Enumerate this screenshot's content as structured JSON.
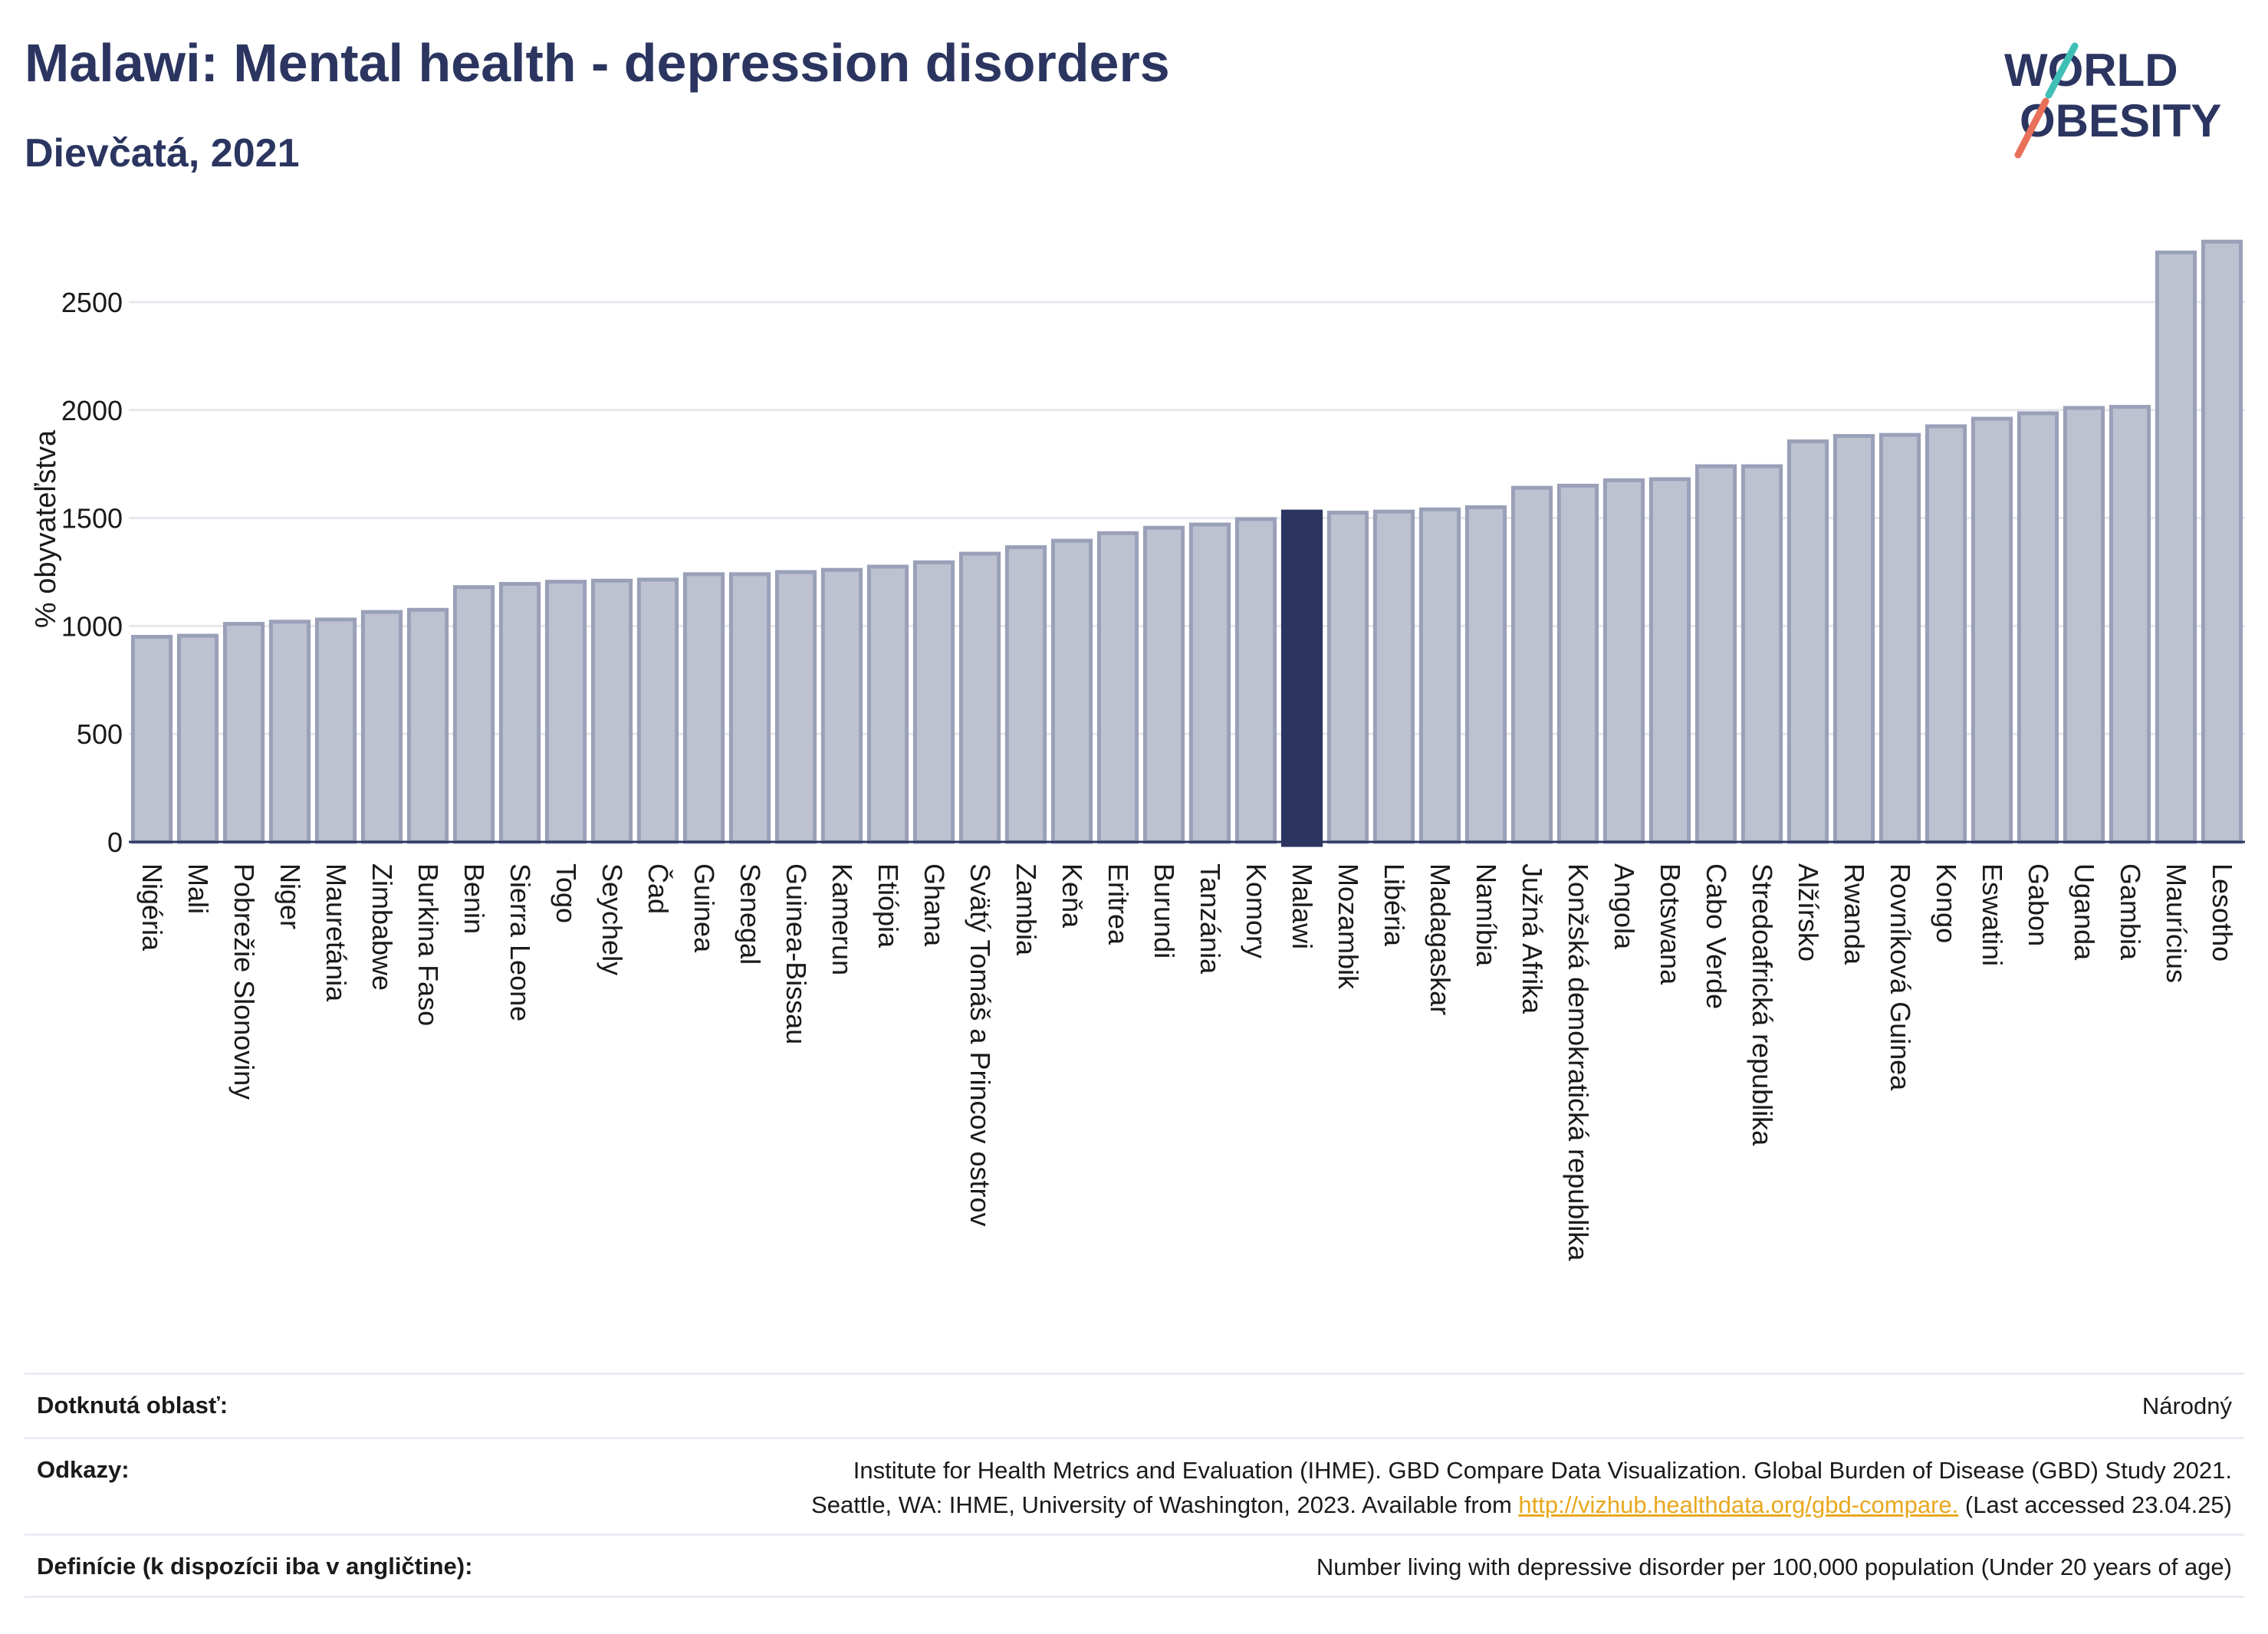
{
  "header": {
    "title": "Malawi: Mental health - depression disorders",
    "subtitle": "Dievčatá, 2021"
  },
  "logo": {
    "line1": "WORLD",
    "line2": "OBESITY"
  },
  "colors": {
    "bar": "#bdc1d0",
    "bar_stroke": "#9aa0b8",
    "highlight": "#2b3560",
    "grid": "#e6e8ee",
    "text": "#2b3560"
  },
  "chart_data": {
    "type": "bar",
    "ylabel": "% obyvateľstva",
    "ylim": [
      0,
      2800
    ],
    "yticks": [
      0,
      500,
      1000,
      1500,
      2000,
      2500
    ],
    "grid": true,
    "highlight": "Malawi",
    "categories": [
      "Nigéria",
      "Mali",
      "Pobrežie Slonoviny",
      "Niger",
      "Mauretánia",
      "Zimbabwe",
      "Burkina Faso",
      "Benin",
      "Sierra Leone",
      "Togo",
      "Seychely",
      "Čad",
      "Guinea",
      "Senegal",
      "Guinea-Bissau",
      "Kamerun",
      "Etiópia",
      "Ghana",
      "Svätý Tomáš a Princov ostrov",
      "Zambia",
      "Keňa",
      "Eritrea",
      "Burundi",
      "Tanzánia",
      "Komory",
      "Malawi",
      "Mozambik",
      "Libéria",
      "Madagaskar",
      "Namíbia",
      "Južná Afrika",
      "Konžská demokratická republika",
      "Angola",
      "Botswana",
      "Cabo Verde",
      "Stredoafrická republika",
      "Alžírsko",
      "Rwanda",
      "Rovníková Guinea",
      "Kongo",
      "Eswatini",
      "Gabon",
      "Uganda",
      "Gambia",
      "Maurícius",
      "Lesotho"
    ],
    "values": [
      950,
      955,
      1010,
      1020,
      1030,
      1065,
      1075,
      1180,
      1195,
      1205,
      1210,
      1215,
      1240,
      1240,
      1250,
      1260,
      1275,
      1295,
      1335,
      1365,
      1395,
      1430,
      1455,
      1470,
      1495,
      1530,
      1525,
      1530,
      1540,
      1550,
      1640,
      1650,
      1675,
      1680,
      1740,
      1740,
      1855,
      1880,
      1885,
      1925,
      1960,
      1985,
      2010,
      2015,
      2730,
      2780
    ]
  },
  "info": {
    "area_label": "Dotknutá oblasť:",
    "area_value": "Národný",
    "refs_label": "Odkazy:",
    "refs_line1": "Institute for Health Metrics and Evaluation (IHME). GBD Compare Data Visualization. Global Burden of Disease (GBD) Study 2021.",
    "refs_line2_pre": "Seattle, WA: IHME, University of Washington, 2023. Available from ",
    "refs_link": "http://vizhub.healthdata.org/gbd-compare.",
    "refs_line2_post": " (Last accessed 23.04.25)",
    "def_label": "Definície (k dispozícii iba v angličtine):",
    "def_value": "Number living with depressive disorder per 100,000 population (Under 20 years of age)"
  }
}
